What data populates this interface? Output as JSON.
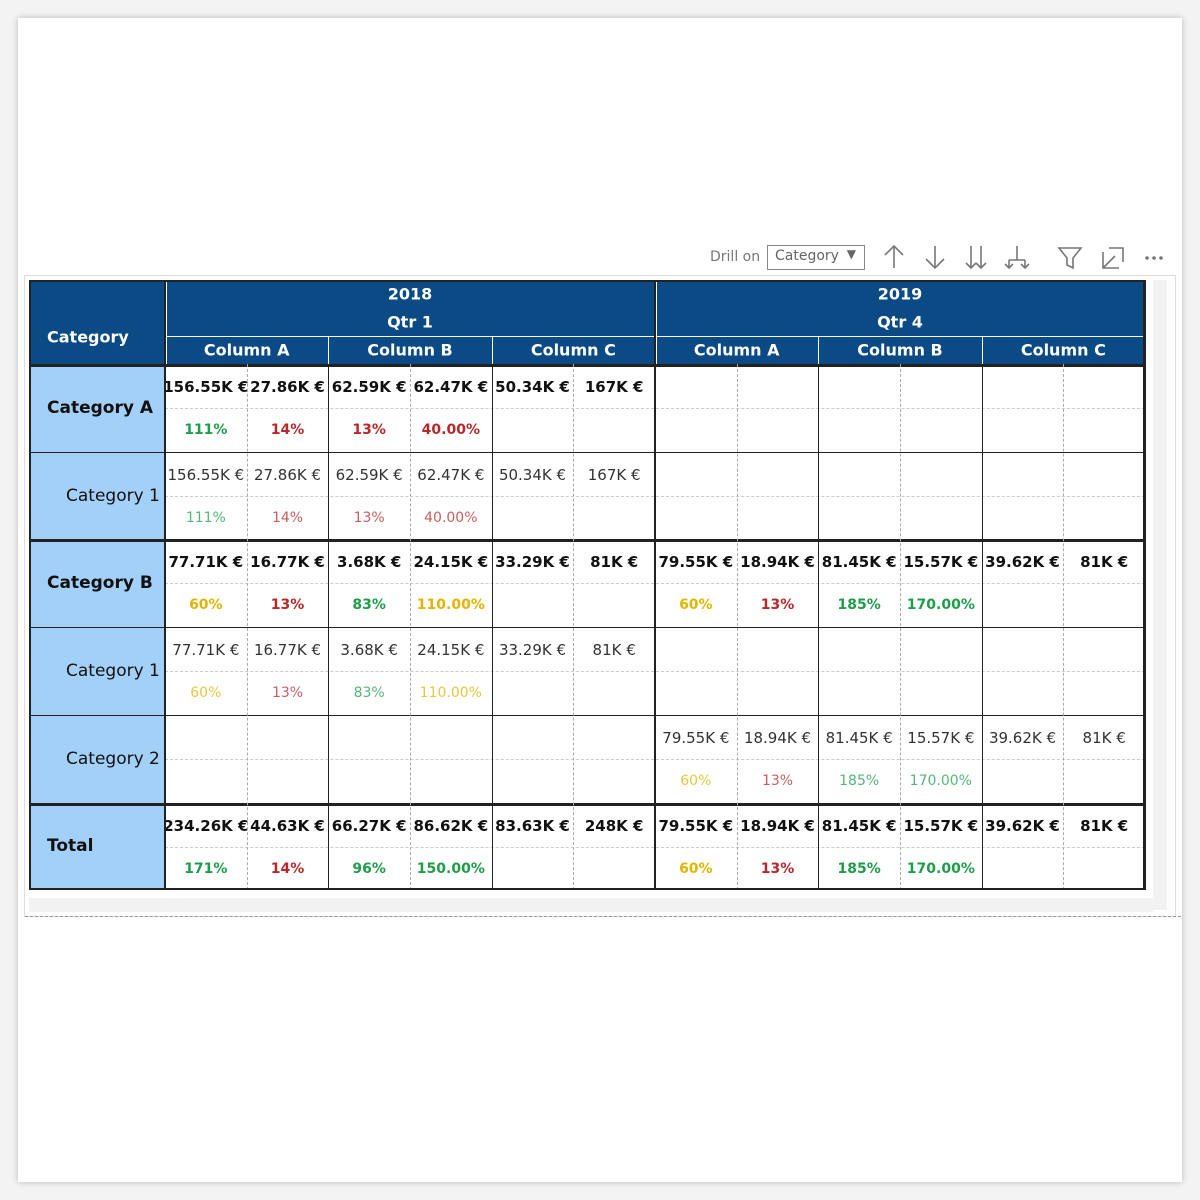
{
  "toolbar": {
    "drill_label": "Drill on",
    "drill_value": "Category"
  },
  "header": {
    "category": "Category",
    "groups": [
      {
        "year": "2018",
        "quarter": "Qtr 1",
        "columns": [
          "Column A",
          "Column B",
          "Column C"
        ]
      },
      {
        "year": "2019",
        "quarter": "Qtr 4",
        "columns": [
          "Column A",
          "Column B",
          "Column C"
        ]
      }
    ]
  },
  "rows": [
    {
      "label": "Category A",
      "bold": true,
      "cells": [
        {
          "value": "156.55K €",
          "pct": "111%",
          "color": "#1e9e4a"
        },
        {
          "value": "27.86K €",
          "pct": "14%",
          "color": "#b8282a"
        },
        {
          "value": "62.59K €",
          "pct": "13%",
          "color": "#b8282a"
        },
        {
          "value": "62.47K €",
          "pct": "40.00%",
          "color": "#b8282a"
        },
        {
          "value": "50.34K €"
        },
        {
          "value": "167K €"
        },
        null,
        null,
        null,
        null,
        null,
        null
      ]
    },
    {
      "label": "Category 1",
      "bold": false,
      "cells": [
        {
          "value": "156.55K €",
          "pct": "111%",
          "color": "#1e9e4a"
        },
        {
          "value": "27.86K €",
          "pct": "14%",
          "color": "#b8282a"
        },
        {
          "value": "62.59K €",
          "pct": "13%",
          "color": "#b8282a"
        },
        {
          "value": "62.47K €",
          "pct": "40.00%",
          "color": "#b8282a"
        },
        {
          "value": "50.34K €"
        },
        {
          "value": "167K €"
        },
        null,
        null,
        null,
        null,
        null,
        null
      ]
    },
    {
      "label": "Category B",
      "bold": true,
      "cells": [
        {
          "value": "77.71K €",
          "pct": "60%",
          "color": "#e3b400"
        },
        {
          "value": "16.77K €",
          "pct": "13%",
          "color": "#b8282a"
        },
        {
          "value": "3.68K €",
          "pct": "83%",
          "color": "#1e9e4a"
        },
        {
          "value": "24.15K €",
          "pct": "110.00%",
          "color": "#e3b400"
        },
        {
          "value": "33.29K €"
        },
        {
          "value": "81K €"
        },
        {
          "value": "79.55K €",
          "pct": "60%",
          "color": "#e3b400"
        },
        {
          "value": "18.94K €",
          "pct": "13%",
          "color": "#b8282a"
        },
        {
          "value": "81.45K €",
          "pct": "185%",
          "color": "#1e9e4a"
        },
        {
          "value": "15.57K €",
          "pct": "170.00%",
          "color": "#1e9e4a"
        },
        {
          "value": "39.62K €"
        },
        {
          "value": "81K €"
        }
      ]
    },
    {
      "label": "Category 1",
      "bold": false,
      "cells": [
        {
          "value": "77.71K €",
          "pct": "60%",
          "color": "#e3b400"
        },
        {
          "value": "16.77K €",
          "pct": "13%",
          "color": "#b8282a"
        },
        {
          "value": "3.68K €",
          "pct": "83%",
          "color": "#1e9e4a"
        },
        {
          "value": "24.15K €",
          "pct": "110.00%",
          "color": "#e3b400"
        },
        {
          "value": "33.29K €"
        },
        {
          "value": "81K €"
        },
        null,
        null,
        null,
        null,
        null,
        null
      ]
    },
    {
      "label": "Category 2",
      "bold": false,
      "cells": [
        null,
        null,
        null,
        null,
        null,
        null,
        {
          "value": "79.55K €",
          "pct": "60%",
          "color": "#e3b400"
        },
        {
          "value": "18.94K €",
          "pct": "13%",
          "color": "#b8282a"
        },
        {
          "value": "81.45K €",
          "pct": "185%",
          "color": "#1e9e4a"
        },
        {
          "value": "15.57K €",
          "pct": "170.00%",
          "color": "#1e9e4a"
        },
        {
          "value": "39.62K €"
        },
        {
          "value": "81K €"
        }
      ]
    },
    {
      "label": "Total",
      "bold": true,
      "cells": [
        {
          "value": "234.26K €",
          "pct": "171%",
          "color": "#1e9e4a"
        },
        {
          "value": "44.63K €",
          "pct": "14%",
          "color": "#b8282a"
        },
        {
          "value": "66.27K €",
          "pct": "96%",
          "color": "#1e9e4a"
        },
        {
          "value": "86.62K €",
          "pct": "150.00%",
          "color": "#1e9e4a"
        },
        {
          "value": "83.63K €"
        },
        {
          "value": "248K €"
        },
        {
          "value": "79.55K €",
          "pct": "60%",
          "color": "#e3b400"
        },
        {
          "value": "18.94K €",
          "pct": "13%",
          "color": "#b8282a"
        },
        {
          "value": "81.45K €",
          "pct": "185%",
          "color": "#1e9e4a"
        },
        {
          "value": "15.57K €",
          "pct": "170.00%",
          "color": "#1e9e4a"
        },
        {
          "value": "39.62K €"
        },
        {
          "value": "81K €"
        }
      ]
    }
  ]
}
